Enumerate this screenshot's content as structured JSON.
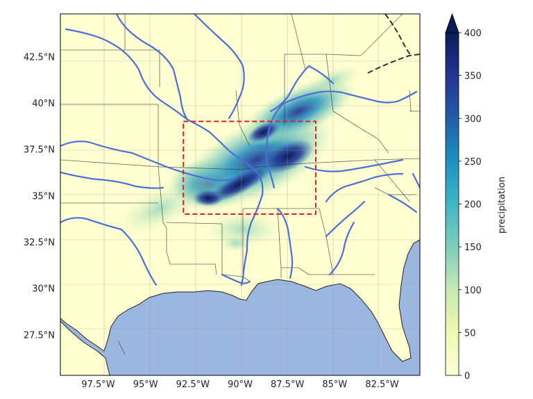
{
  "map": {
    "lat_ticks": [
      "42.5°N",
      "40°N",
      "37.5°N",
      "35°N",
      "32.5°N",
      "30°N",
      "27.5°N"
    ],
    "lat_values": [
      42.5,
      40,
      37.5,
      35,
      32.5,
      30,
      27.5
    ],
    "lon_ticks": [
      "97.5°W",
      "95°W",
      "92.5°W",
      "90°W",
      "87.5°W",
      "85°W",
      "82.5°W"
    ],
    "lon_values": [
      -97.5,
      -95,
      -92.5,
      -90,
      -87.5,
      -85,
      -82.5
    ],
    "extent": {
      "lon": [
        -99.5,
        -80.5
      ],
      "lat": [
        25.3,
        44.8
      ]
    },
    "highlight_box": {
      "lon": [
        -93,
        -86
      ],
      "lat": [
        34,
        39
      ]
    },
    "gridlines": true,
    "land_color": "#ffffd2",
    "ocean_color": "#9bb7e0",
    "river_color": "#4a6fd8",
    "box_color": "#e02020"
  },
  "colorbar": {
    "label": "precipitation",
    "ticks": [
      "0",
      "50",
      "100",
      "150",
      "200",
      "250",
      "300",
      "350",
      "400"
    ],
    "tick_values": [
      0,
      50,
      100,
      150,
      200,
      250,
      300,
      350,
      400
    ],
    "range": [
      0,
      400
    ],
    "extend": "max",
    "colormap": "YlGnBu",
    "colors": [
      "#ffffd9",
      "#edf8b1",
      "#c7e9b4",
      "#7fcdbb",
      "#41b6c4",
      "#1d91c0",
      "#225ea8",
      "#253494",
      "#081d58"
    ]
  }
}
